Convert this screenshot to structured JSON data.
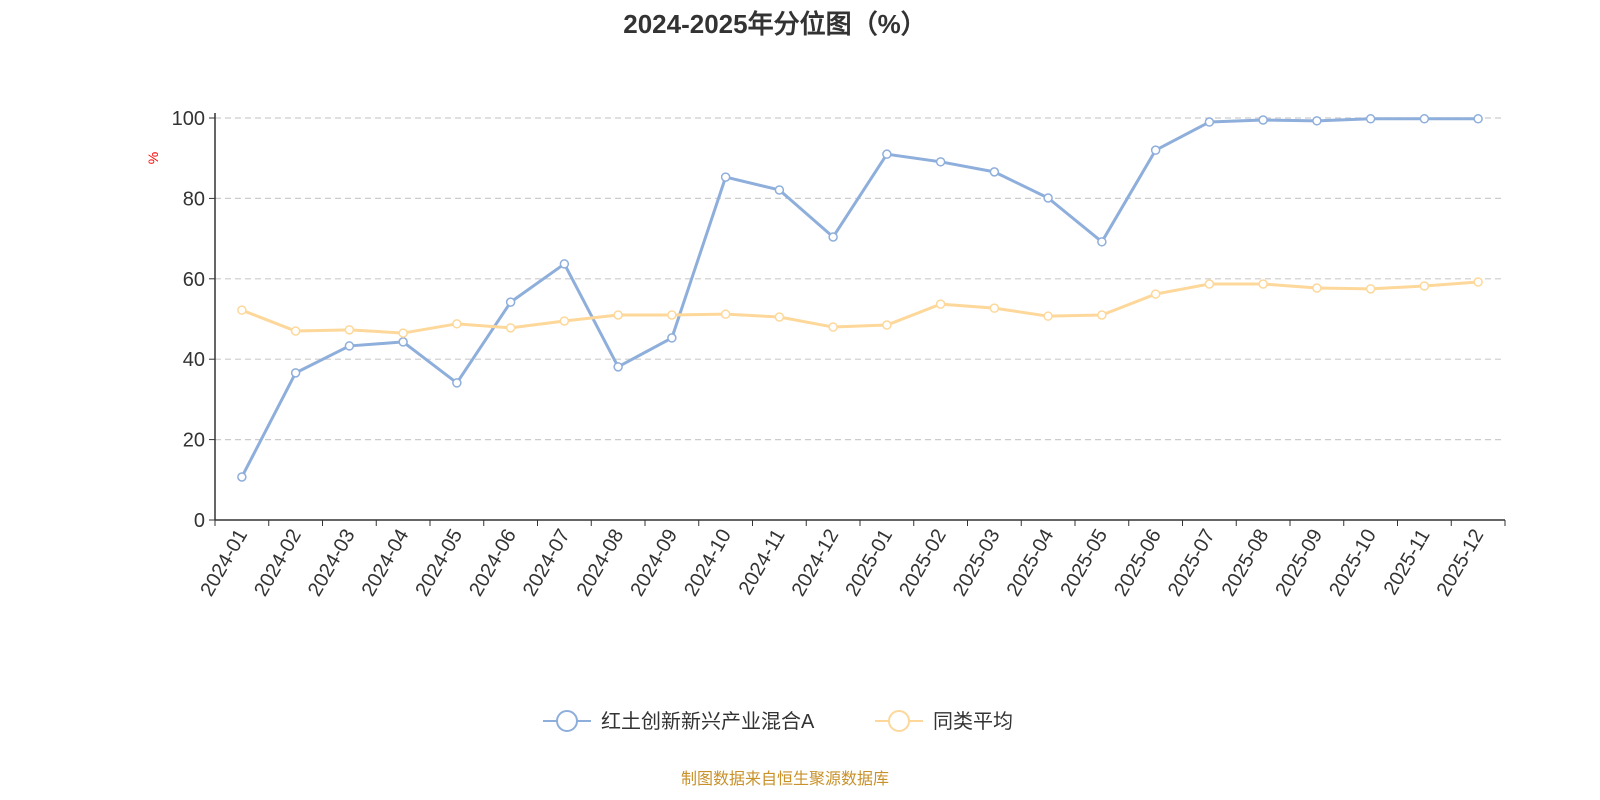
{
  "chart_data": {
    "type": "line",
    "title": "2024-2025年分位图（%）",
    "xlabel": "",
    "ylabel": "%",
    "ylim": [
      0,
      100
    ],
    "yticks": [
      0,
      20,
      40,
      60,
      80,
      100
    ],
    "grid": true,
    "legend_placement": "bottom",
    "categories": [
      "2024-01",
      "2024-02",
      "2024-03",
      "2024-04",
      "2024-05",
      "2024-06",
      "2024-07",
      "2024-08",
      "2024-09",
      "2024-10",
      "2024-11",
      "2024-12",
      "2025-01",
      "2025-02",
      "2025-03",
      "2025-04",
      "2025-05",
      "2025-06",
      "2025-07",
      "2025-08",
      "2025-09",
      "2025-10",
      "2025-11",
      "2025-12"
    ],
    "series": [
      {
        "name": "红土创新新兴产业混合A",
        "color": "#8eaedb",
        "values": [
          10.7,
          36.6,
          43.3,
          44.3,
          34.1,
          54.2,
          63.7,
          38.1,
          45.3,
          85.3,
          82.1,
          70.4,
          91.0,
          89.1,
          86.6,
          80.1,
          69.2,
          92.0,
          99.0,
          99.5,
          99.3,
          99.8,
          99.8,
          99.8
        ]
      },
      {
        "name": "同类平均",
        "color": "#fdd89a",
        "values": [
          52.2,
          47.0,
          47.3,
          46.5,
          48.8,
          47.8,
          49.5,
          51.0,
          51.0,
          51.2,
          50.5,
          48.0,
          48.5,
          53.7,
          52.7,
          50.7,
          51.0,
          56.2,
          58.7,
          58.7,
          57.7,
          57.5,
          58.2,
          59.2
        ]
      }
    ]
  },
  "footer": "制图数据来自恒生聚源数据库"
}
